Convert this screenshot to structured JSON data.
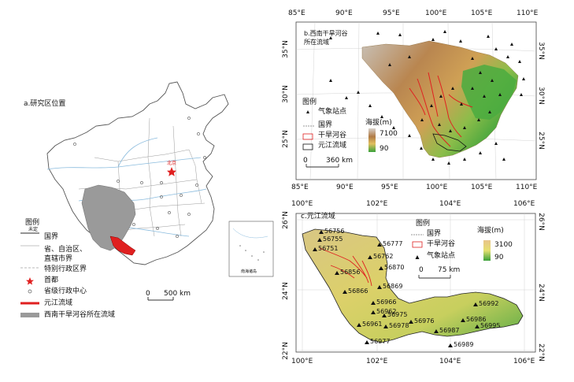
{
  "panel_a": {
    "title": "a.研究区位置",
    "legend_title": "图例",
    "legend_items": [
      {
        "label": "国界"
      },
      {
        "label": "省、自治区、"
      },
      {
        "label": "直辖市界"
      },
      {
        "label": "特别行政区界"
      },
      {
        "label": "首都"
      },
      {
        "label": "省级行政中心"
      },
      {
        "label": "元江流域"
      },
      {
        "label": "西南干旱河谷所在流域"
      }
    ],
    "scale": {
      "zero": "0",
      "label": "500 km"
    },
    "undefined_border": "未定",
    "capital_label": "北京",
    "inset_label": "南海诸岛",
    "colors": {
      "watershed": "#9a9a9a",
      "yuanjiang": "#e02020",
      "border": "#7a7a7a",
      "river": "#8bbcde"
    }
  },
  "panel_b": {
    "title_line1": "b.西南干旱河谷",
    "title_line2": "所在流域",
    "top_ticks": [
      "85°E",
      "90°E",
      "95°E",
      "100°E",
      "105°E",
      "110°E"
    ],
    "bottom_ticks": [
      "85°E",
      "90°E",
      "95°E",
      "100°E",
      "105°E",
      "110°E"
    ],
    "left_ticks": [
      "35°N",
      "30°N",
      "25°N"
    ],
    "right_ticks": [
      "35°N",
      "30°N",
      "25°N"
    ],
    "legend_title": "图例",
    "legend_items": [
      "气象站点",
      "国界",
      "干旱河谷",
      "元江流域"
    ],
    "elevation_title": "海拔(m)",
    "elevation_max": "7100",
    "elevation_min": "90",
    "scale": {
      "zero": "0",
      "label": "360 km"
    }
  },
  "panel_c": {
    "title": "c.元江流域",
    "top_ticks": [
      "100°E",
      "102°E",
      "104°E",
      "106°E"
    ],
    "bottom_ticks": [
      "100°E",
      "102°E",
      "104°E",
      "106°E"
    ],
    "left_ticks": [
      "26°N",
      "24°N",
      "22°N"
    ],
    "right_ticks": [
      "26°N",
      "24°N",
      "22°N"
    ],
    "legend_title": "图例",
    "legend_items": [
      "国界",
      "干旱河谷",
      "气象站点"
    ],
    "elevation_title": "海拔(m)",
    "elevation_max": "3100",
    "elevation_min": "90",
    "scale": {
      "zero": "0",
      "label": "75 km"
    },
    "stations": [
      "56756",
      "56755",
      "56751",
      "56777",
      "56762",
      "56870",
      "56856",
      "56869",
      "56866",
      "56966",
      "56962",
      "56975",
      "56961",
      "56978",
      "56976",
      "56986",
      "56987",
      "56977",
      "56989",
      "56992",
      "56995"
    ]
  }
}
